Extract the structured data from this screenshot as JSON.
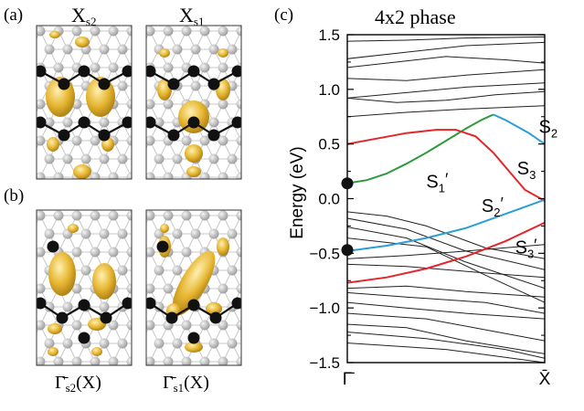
{
  "figure": {
    "panel_a": {
      "tag": "(a)",
      "label_left": "X",
      "label_left_sub": "s2",
      "label_right": "X",
      "label_right_sub": "s1"
    },
    "panel_b": {
      "tag": "(b)",
      "label_left": "Γ̄",
      "label_left_sub": "s2",
      "label_left_suffix": "(X)",
      "label_right": "Γ̄",
      "label_right_sub": "s1",
      "label_right_suffix": "(X)"
    },
    "panel_c": {
      "tag": "(c)",
      "title": "4x2 phase"
    }
  },
  "colors": {
    "red": "#e3262b",
    "green": "#2e9a3e",
    "blue": "#2a9fd6",
    "gold": "#e6b632",
    "black": "#111111",
    "grey": "#b9b9b9"
  },
  "chart_data": {
    "type": "line",
    "title": "4x2 phase",
    "ylabel": "Energy (eV)",
    "xlabel": "",
    "xticks": [
      "Γ̄",
      "X̄"
    ],
    "yticks": [
      "1.5",
      "1.0",
      "0.5",
      "0.0",
      "−0.5",
      "−1.0",
      "−1.5"
    ],
    "ylim": [
      -1.5,
      1.5
    ],
    "xlim": [
      0,
      1
    ],
    "highlighted_bands": [
      {
        "name": "S1′ / S2",
        "color": "green",
        "points": [
          [
            0,
            0.14
          ],
          [
            0.1,
            0.17
          ],
          [
            0.2,
            0.23
          ],
          [
            0.3,
            0.32
          ],
          [
            0.4,
            0.42
          ],
          [
            0.5,
            0.53
          ],
          [
            0.6,
            0.64
          ],
          [
            0.68,
            0.72
          ],
          [
            0.74,
            0.77
          ]
        ]
      },
      {
        "name": "S2 (tail)",
        "color": "blue",
        "points": [
          [
            0.74,
            0.77
          ],
          [
            0.8,
            0.72
          ],
          [
            0.86,
            0.66
          ],
          [
            0.92,
            0.6
          ],
          [
            1.0,
            0.5
          ]
        ]
      },
      {
        "name": "S3 / S1 upper",
        "color": "red",
        "points": [
          [
            0,
            0.5
          ],
          [
            0.15,
            0.55
          ],
          [
            0.3,
            0.6
          ],
          [
            0.45,
            0.63
          ],
          [
            0.55,
            0.63
          ],
          [
            0.65,
            0.57
          ],
          [
            0.74,
            0.42
          ],
          [
            0.82,
            0.25
          ],
          [
            0.9,
            0.08
          ],
          [
            1.0,
            -0.02
          ]
        ]
      },
      {
        "name": "S2′",
        "color": "blue",
        "points": [
          [
            0,
            -0.48
          ],
          [
            0.2,
            -0.43
          ],
          [
            0.4,
            -0.36
          ],
          [
            0.6,
            -0.27
          ],
          [
            0.8,
            -0.14
          ],
          [
            1.0,
            -0.01
          ]
        ]
      },
      {
        "name": "S3′",
        "color": "red",
        "points": [
          [
            0,
            -0.77
          ],
          [
            0.2,
            -0.72
          ],
          [
            0.4,
            -0.64
          ],
          [
            0.6,
            -0.53
          ],
          [
            0.8,
            -0.39
          ],
          [
            1.0,
            -0.22
          ]
        ]
      }
    ],
    "markers": [
      {
        "x": 0,
        "y": 0.14
      },
      {
        "x": 0,
        "y": -0.47
      }
    ],
    "annotations": [
      {
        "text": "S",
        "sub": "2",
        "x": 0.97,
        "y": 0.6
      },
      {
        "text": "S",
        "sub": "3",
        "x": 0.86,
        "y": 0.22
      },
      {
        "text": "S",
        "sub": "1",
        "prime": "′",
        "x": 0.4,
        "y": 0.1
      },
      {
        "text": "S",
        "sub": "2",
        "prime": "′",
        "x": 0.68,
        "y": -0.12
      },
      {
        "text": "S",
        "sub": "3",
        "prime": "′",
        "x": 0.85,
        "y": -0.5
      }
    ],
    "black_bands": [
      [
        [
          0,
          1.44
        ],
        [
          0.3,
          1.45
        ],
        [
          0.6,
          1.47
        ],
        [
          1,
          1.48
        ]
      ],
      [
        [
          0,
          1.28
        ],
        [
          0.3,
          1.34
        ],
        [
          0.6,
          1.4
        ],
        [
          1,
          1.43
        ]
      ],
      [
        [
          0,
          1.2
        ],
        [
          0.2,
          1.24
        ],
        [
          0.5,
          1.3
        ],
        [
          0.8,
          1.27
        ],
        [
          1,
          1.24
        ]
      ],
      [
        [
          0,
          1.1
        ],
        [
          0.3,
          1.08
        ],
        [
          0.6,
          1.13
        ],
        [
          1,
          1.18
        ]
      ],
      [
        [
          0,
          0.92
        ],
        [
          0.3,
          0.97
        ],
        [
          0.6,
          1.02
        ],
        [
          1,
          1.06
        ]
      ],
      [
        [
          0,
          0.92
        ],
        [
          0.25,
          0.88
        ],
        [
          0.5,
          0.9
        ],
        [
          0.75,
          0.95
        ],
        [
          1,
          0.98
        ]
      ],
      [
        [
          0,
          0.75
        ],
        [
          0.3,
          0.79
        ],
        [
          0.6,
          0.82
        ],
        [
          1,
          0.85
        ]
      ],
      [
        [
          0,
          -0.12
        ],
        [
          0.2,
          -0.16
        ],
        [
          0.4,
          -0.25
        ],
        [
          0.7,
          -0.45
        ],
        [
          1,
          -0.55
        ]
      ],
      [
        [
          0,
          -0.18
        ],
        [
          0.3,
          -0.28
        ],
        [
          0.6,
          -0.48
        ],
        [
          1,
          -0.65
        ]
      ],
      [
        [
          0,
          -0.26
        ],
        [
          0.3,
          -0.36
        ],
        [
          0.6,
          -0.58
        ],
        [
          1,
          -0.82
        ]
      ],
      [
        [
          0,
          -0.36
        ],
        [
          0.4,
          -0.44
        ],
        [
          0.7,
          -0.7
        ],
        [
          1,
          -0.95
        ]
      ],
      [
        [
          0,
          -0.55
        ],
        [
          0.3,
          -0.52
        ],
        [
          0.6,
          -0.48
        ],
        [
          1,
          -0.42
        ]
      ],
      [
        [
          0,
          -0.6
        ],
        [
          0.3,
          -0.62
        ],
        [
          0.7,
          -0.68
        ],
        [
          1,
          -0.72
        ]
      ],
      [
        [
          0,
          -0.82
        ],
        [
          0.3,
          -0.8
        ],
        [
          0.6,
          -0.85
        ],
        [
          1,
          -0.9
        ]
      ],
      [
        [
          0,
          -0.86
        ],
        [
          0.3,
          -0.9
        ],
        [
          0.7,
          -0.95
        ],
        [
          1,
          -1.05
        ]
      ],
      [
        [
          0,
          -0.95
        ],
        [
          0.3,
          -1.0
        ],
        [
          0.6,
          -1.05
        ],
        [
          1,
          -1.1
        ]
      ],
      [
        [
          0,
          -1.05
        ],
        [
          0.4,
          -1.1
        ],
        [
          0.7,
          -1.2
        ],
        [
          1,
          -1.3
        ]
      ],
      [
        [
          0,
          -1.15
        ],
        [
          0.3,
          -1.18
        ],
        [
          0.6,
          -1.3
        ],
        [
          1,
          -1.42
        ]
      ],
      [
        [
          0,
          -1.22
        ],
        [
          0.4,
          -1.28
        ],
        [
          0.8,
          -1.38
        ],
        [
          1,
          -1.46
        ]
      ],
      [
        [
          0,
          -1.32
        ],
        [
          0.5,
          -1.38
        ],
        [
          1,
          -1.5
        ]
      ]
    ]
  }
}
